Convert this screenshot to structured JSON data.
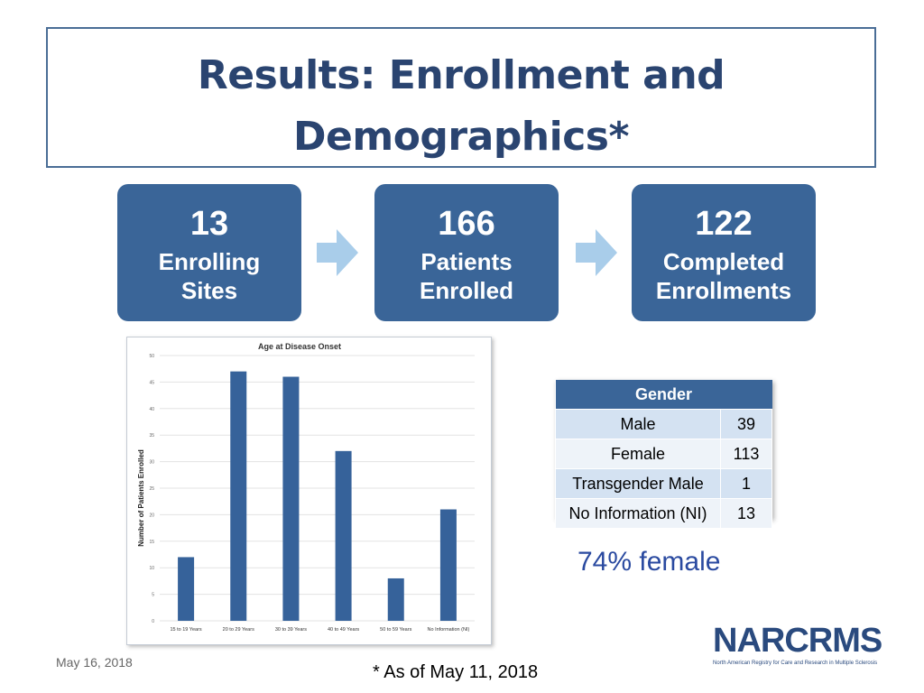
{
  "slide": {
    "title_line1": "Results: Enrollment and",
    "title_line2": "Demographics*",
    "date": "May 16, 2018",
    "footnote": "* As of May 11, 2018"
  },
  "stats": [
    {
      "number": "13",
      "label1": "Enrolling",
      "label2": "Sites"
    },
    {
      "number": "166",
      "label1": "Patients",
      "label2": "Enrolled"
    },
    {
      "number": "122",
      "label1": "Completed",
      "label2": "Enrollments"
    }
  ],
  "gender_table": {
    "header": "Gender",
    "rows": [
      {
        "label": "Male",
        "value": "39"
      },
      {
        "label": "Female",
        "value": "113"
      },
      {
        "label": "Transgender Male",
        "value": "1"
      },
      {
        "label": "No Information (NI)",
        "value": "13"
      }
    ]
  },
  "female_note": "74% female",
  "logo": {
    "wordmark": "NARCRMS",
    "tagline": "North American Registry for Care and Research in Multiple Sclerosis"
  },
  "colors": {
    "accent": "#3a6598",
    "title": "#2a4470",
    "bar": "#36629a"
  },
  "chart_data": {
    "type": "bar",
    "title": "Age at Disease Onset",
    "xlabel": "",
    "ylabel": "Number of Patients Enrolled",
    "categories": [
      "15 to 19 Years",
      "20 to 29 Years",
      "30 to 39 Years",
      "40 to 49 Years",
      "50 to 59 Years",
      "No Information (NI)"
    ],
    "values": [
      12,
      47,
      46,
      32,
      8,
      21
    ],
    "ylim": [
      0,
      50
    ],
    "yticks": [
      "0",
      "5",
      "10",
      "15",
      "20",
      "25",
      "30",
      "35",
      "40",
      "45",
      "50"
    ],
    "grid": true,
    "legend": "none"
  }
}
